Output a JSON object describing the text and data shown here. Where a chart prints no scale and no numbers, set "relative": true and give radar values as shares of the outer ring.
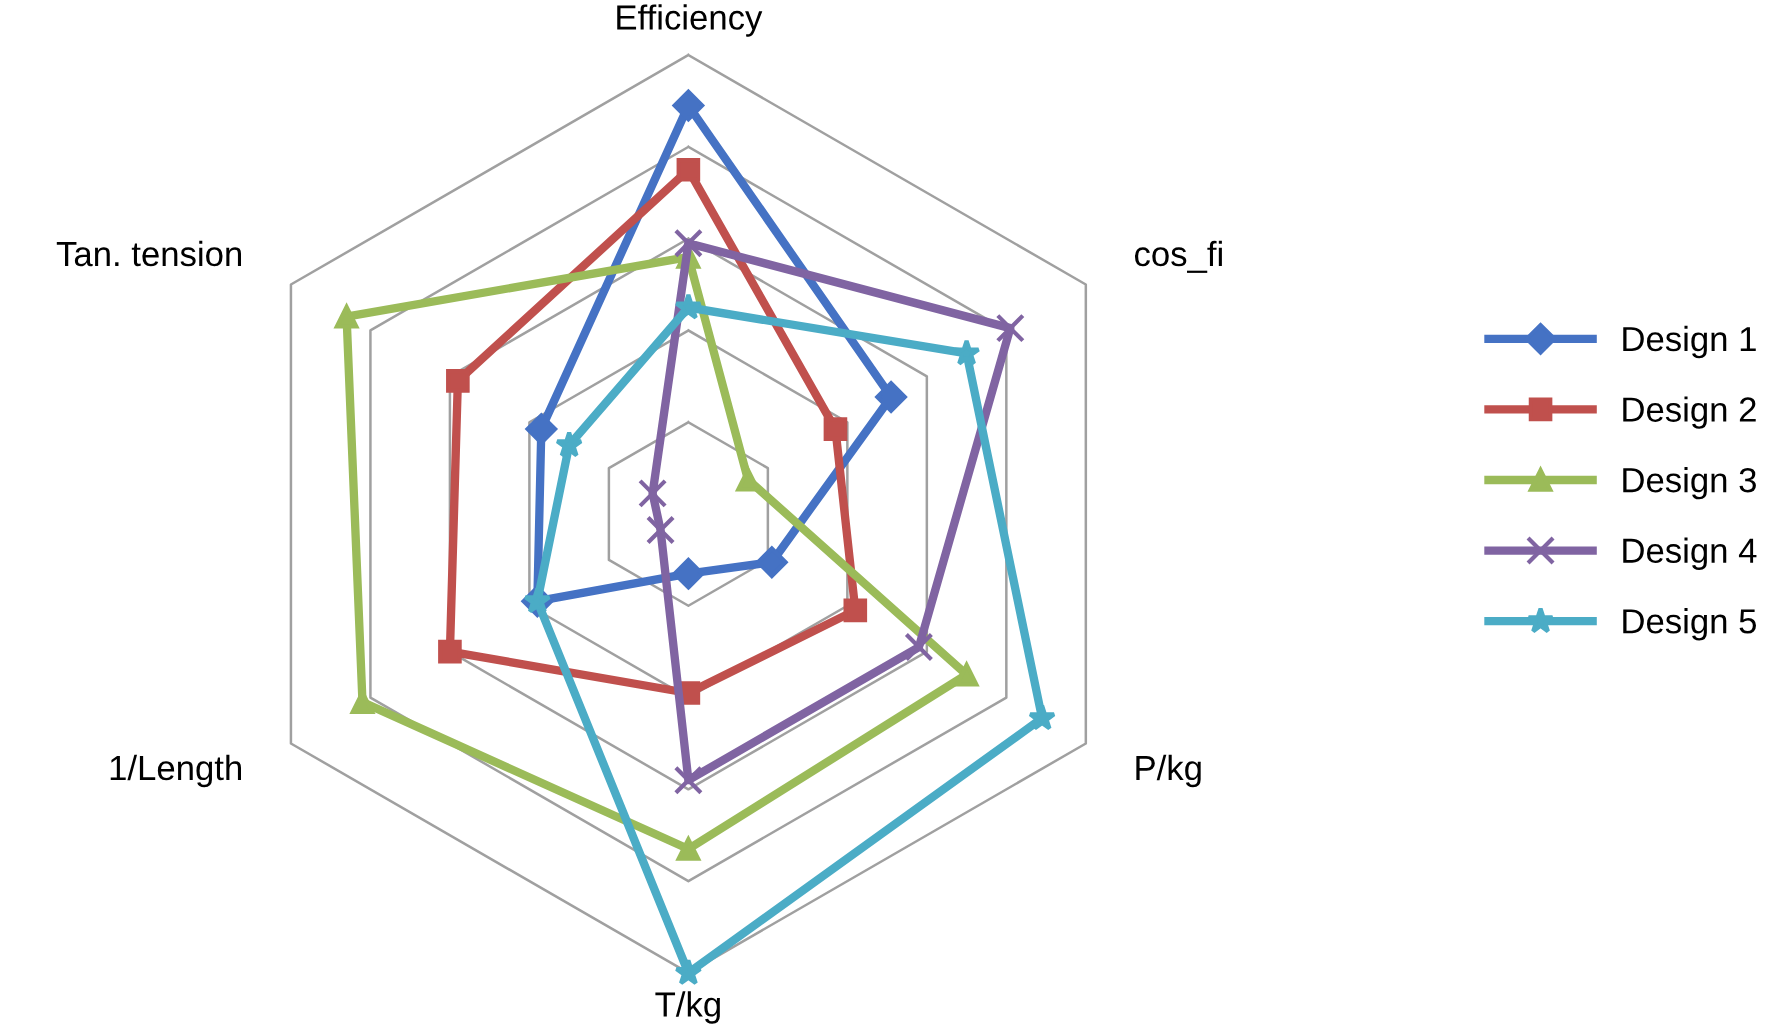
{
  "chart_data": {
    "type": "radar",
    "relative": true,
    "grid": true,
    "legend": "right",
    "categories": [
      "Efficiency",
      "cos_fi",
      "P/kg",
      "T/kg",
      "1/Length",
      "Tan. tension"
    ],
    "series": [
      {
        "name": "Design 1",
        "color": "#4572c4",
        "marker": "diamond",
        "values": [
          0.89,
          0.51,
          0.21,
          0.13,
          0.38,
          0.37
        ]
      },
      {
        "name": "Design 2",
        "color": "#c0504d",
        "marker": "square",
        "values": [
          0.75,
          0.37,
          0.42,
          0.39,
          0.6,
          0.58
        ]
      },
      {
        "name": "Design 3",
        "color": "#9bbb59",
        "marker": "triangle",
        "values": [
          0.56,
          0.15,
          0.7,
          0.73,
          0.82,
          0.86
        ]
      },
      {
        "name": "Design 4",
        "color": "#8064a2",
        "marker": "cross",
        "values": [
          0.59,
          0.81,
          0.58,
          0.58,
          0.07,
          0.09
        ]
      },
      {
        "name": "Design 5",
        "color": "#4bacc6",
        "marker": "star",
        "values": [
          0.45,
          0.7,
          0.89,
          1.0,
          0.38,
          0.3
        ]
      }
    ]
  }
}
